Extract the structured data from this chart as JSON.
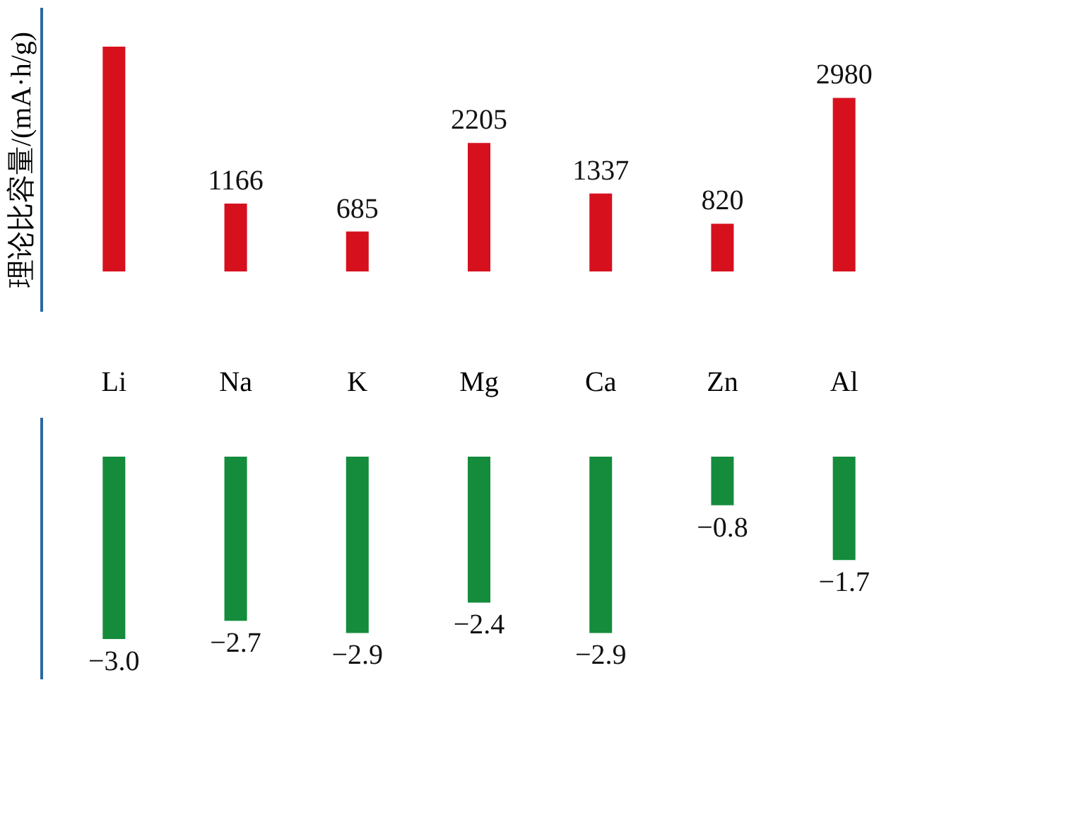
{
  "chart_data": [
    {
      "type": "bar",
      "ylabel": "理论比容量/(mA·h/g)",
      "categories": [
        "Li",
        "Na",
        "K",
        "Mg",
        "Ca",
        "Zn",
        "Al"
      ],
      "series": [
        {
          "color": "#d7101e",
          "values": [
            3860,
            1166,
            685,
            2205,
            1337,
            820,
            2980
          ],
          "value_labels": [
            null,
            "1166",
            "685",
            "2205",
            "1337",
            "820",
            "2980"
          ]
        }
      ],
      "tick_labels": "x",
      "grid": false
    },
    {
      "type": "bar",
      "categories": [
        null,
        null,
        null,
        null,
        null,
        null,
        null
      ],
      "series": [
        {
          "color": "#148c3c",
          "values": [
            -3.0,
            -2.7,
            -2.9,
            -2.4,
            -2.9,
            -0.8,
            -1.7
          ],
          "value_labels": [
            "−3.0",
            "−2.7",
            "−2.9",
            "−2.4",
            "−2.9",
            "−0.8",
            "−1.7"
          ]
        }
      ],
      "tick_labels": false,
      "grid": false
    }
  ]
}
